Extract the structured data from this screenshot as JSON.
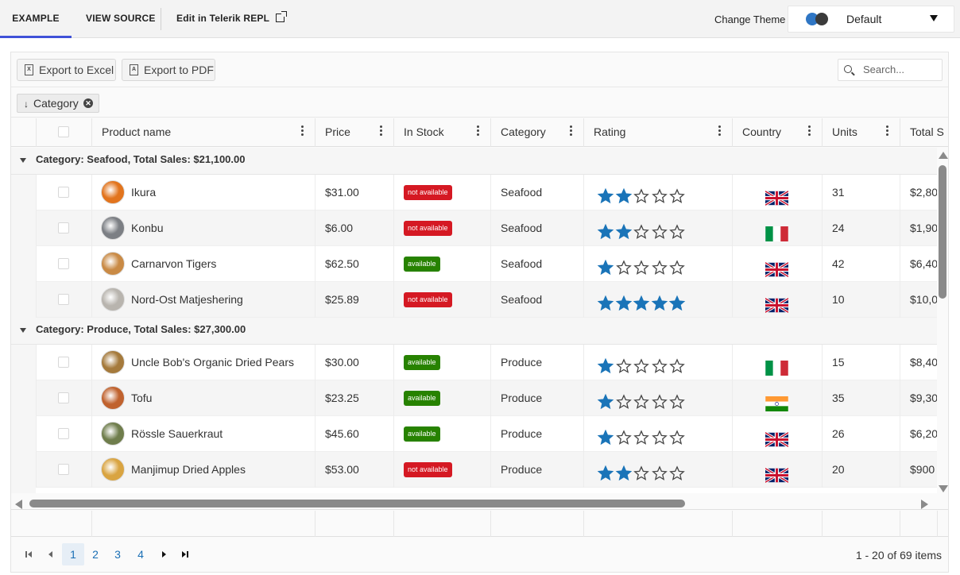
{
  "topbar": {
    "tabs": [
      "EXAMPLE",
      "VIEW SOURCE",
      "Edit in Telerik REPL"
    ],
    "change_theme_label": "Change Theme",
    "theme_value": "Default"
  },
  "toolbar": {
    "export_excel": "Export to Excel",
    "export_pdf": "Export to PDF",
    "search_placeholder": "Search..."
  },
  "group_chip": {
    "label": "Category",
    "arrow": "↓"
  },
  "columns": [
    "Product name",
    "Price",
    "In Stock",
    "Category",
    "Rating",
    "Country",
    "Units",
    "Total S"
  ],
  "groups": [
    {
      "title": "Category: Seafood, Total Sales: $21,100.00",
      "rows": [
        {
          "name": "Ikura",
          "price": "$31.00",
          "stock": "not available",
          "available": false,
          "category": "Seafood",
          "rating": 2,
          "country": "uk",
          "units": "31",
          "total": "$2,80",
          "avatar_color": "#e2741d"
        },
        {
          "name": "Konbu",
          "price": "$6.00",
          "stock": "not available",
          "available": false,
          "category": "Seafood",
          "rating": 2,
          "country": "it",
          "units": "24",
          "total": "$1,90",
          "avatar_color": "#7c7f84"
        },
        {
          "name": "Carnarvon Tigers",
          "price": "$62.50",
          "stock": "available",
          "available": true,
          "category": "Seafood",
          "rating": 1,
          "country": "uk",
          "units": "42",
          "total": "$6,40",
          "avatar_color": "#c98a45"
        },
        {
          "name": "Nord-Ost Matjeshering",
          "price": "$25.89",
          "stock": "not available",
          "available": false,
          "category": "Seafood",
          "rating": 5,
          "country": "uk",
          "units": "10",
          "total": "$10,0",
          "avatar_color": "#b8b4ae"
        }
      ]
    },
    {
      "title": "Category: Produce, Total Sales: $27,300.00",
      "rows": [
        {
          "name": "Uncle Bob's Organic Dried Pears",
          "price": "$30.00",
          "stock": "available",
          "available": true,
          "category": "Produce",
          "rating": 1,
          "country": "it",
          "units": "15",
          "total": "$8,40",
          "avatar_color": "#a57a3c"
        },
        {
          "name": "Tofu",
          "price": "$23.25",
          "stock": "available",
          "available": true,
          "category": "Produce",
          "rating": 1,
          "country": "in",
          "units": "35",
          "total": "$9,30",
          "avatar_color": "#c0622e"
        },
        {
          "name": "Rössle Sauerkraut",
          "price": "$45.60",
          "stock": "available",
          "available": true,
          "category": "Produce",
          "rating": 1,
          "country": "uk",
          "units": "26",
          "total": "$6,20",
          "avatar_color": "#6f7d4c"
        },
        {
          "name": "Manjimup Dried Apples",
          "price": "$53.00",
          "stock": "not available",
          "available": false,
          "category": "Produce",
          "rating": 2,
          "country": "uk",
          "units": "20",
          "total": "$900",
          "avatar_color": "#d9a441"
        }
      ]
    }
  ],
  "pager": {
    "pages": [
      "1",
      "2",
      "3",
      "4"
    ],
    "selected": "1",
    "info": "1 - 20 of 69 items"
  },
  "colors": {
    "accent": "#3f51d8",
    "star": "#1a74b8",
    "available": "#278200",
    "not_available": "#d51923"
  }
}
